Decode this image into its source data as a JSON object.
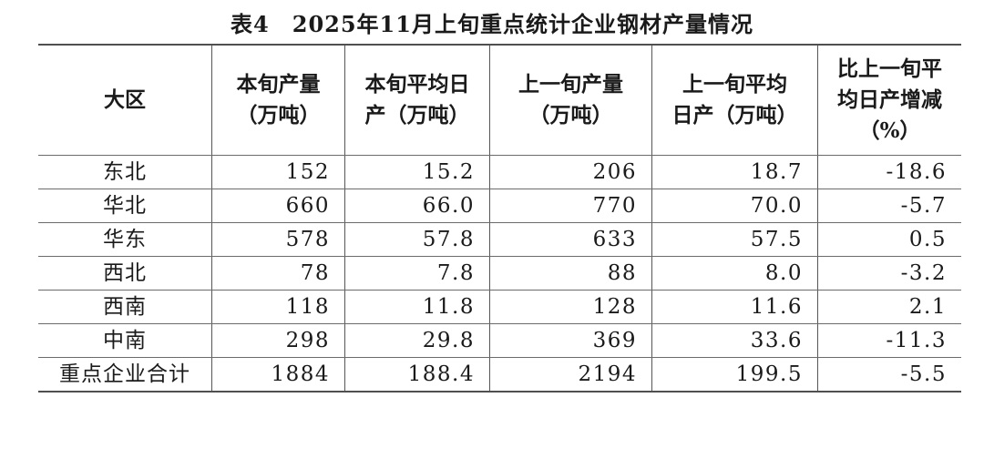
{
  "page": {
    "background": "#ffffff",
    "text_color": "#1a1a1a",
    "rule_color": "#4f4f4f"
  },
  "chart_data": {
    "type": "table",
    "title": "表4　2025年11月上旬重点统计企业钢材产量情况",
    "columns": [
      {
        "key": "region",
        "label": "大区"
      },
      {
        "key": "current_period_output",
        "label": "本旬产量\n（万吨）"
      },
      {
        "key": "current_period_daily_avg",
        "label": "本旬平均日\n产（万吨）"
      },
      {
        "key": "previous_period_output",
        "label": "上一旬产量\n（万吨）"
      },
      {
        "key": "previous_period_daily_avg",
        "label": "上一旬平均\n日产（万吨）"
      },
      {
        "key": "daily_avg_change_pct",
        "label": "比上一旬平\n均日产增减\n（%）"
      }
    ],
    "rows": [
      [
        "东北",
        "152",
        "15.2",
        "206",
        "18.7",
        "-18.6"
      ],
      [
        "华北",
        "660",
        "66.0",
        "770",
        "70.0",
        "-5.7"
      ],
      [
        "华东",
        "578",
        "57.8",
        "633",
        "57.5",
        "0.5"
      ],
      [
        "西北",
        "78",
        "7.8",
        "88",
        "8.0",
        "-3.2"
      ],
      [
        "西南",
        "118",
        "11.8",
        "128",
        "11.6",
        "2.1"
      ],
      [
        "中南",
        "298",
        "29.8",
        "369",
        "33.6",
        "-11.3"
      ],
      [
        "重点企业合计",
        "1884",
        "188.4",
        "2194",
        "199.5",
        "-5.5"
      ]
    ],
    "total_row_label": "重点企业合计",
    "units": "万吨",
    "change_units": "%"
  }
}
